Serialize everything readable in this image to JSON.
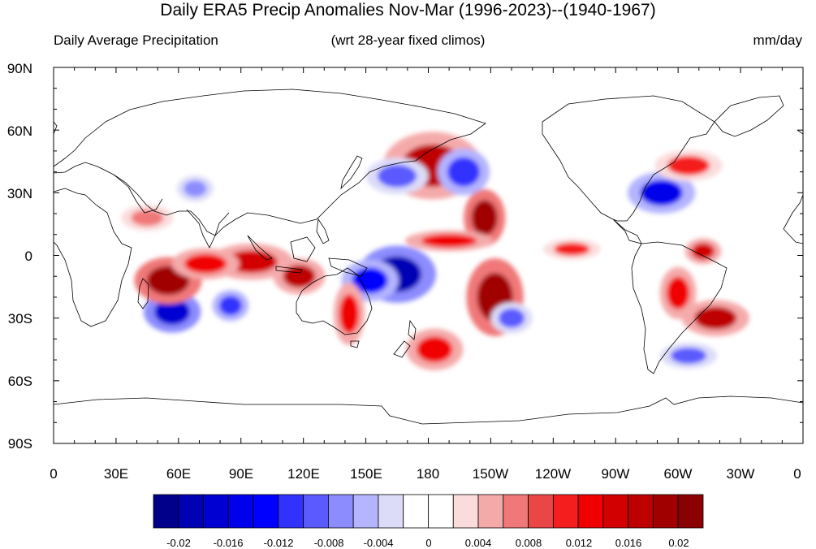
{
  "title": "Daily ERA5 Precip Anomalies Nov-Mar (1996-2023)--(1940-1967)",
  "subtitle_left": "Daily Average Precipitation",
  "subtitle_center": "(wrt 28-year fixed climos)",
  "subtitle_right": "mm/day",
  "y_ticks": [
    "90N",
    "60N",
    "30N",
    "0",
    "30S",
    "60S",
    "90S"
  ],
  "x_ticks": [
    "0",
    "30E",
    "60E",
    "90E",
    "120E",
    "150E",
    "180",
    "150W",
    "120W",
    "90W",
    "60W",
    "30W",
    "0"
  ],
  "colorbar": {
    "colors": [
      "#00008b",
      "#0000b4",
      "#0000d2",
      "#0000eb",
      "#0000ff",
      "#3232ff",
      "#5a5aff",
      "#8c8cff",
      "#b4b4ff",
      "#dcdcf8",
      "#ffffff",
      "#ffffff",
      "#fadcdc",
      "#f5aaaa",
      "#f07878",
      "#eb4646",
      "#f51e1e",
      "#f00000",
      "#d20000",
      "#be0000",
      "#a00000",
      "#8b0000"
    ],
    "labels": [
      "-0.02",
      "-0.016",
      "-0.012",
      "-0.008",
      "-0.004",
      "0",
      "0.004",
      "0.008",
      "0.012",
      "0.016",
      "0.02"
    ]
  },
  "chart_data": {
    "type": "heatmap",
    "title": "Daily ERA5 Precip Anomalies Nov-Mar (1996-2023)--(1940-1967)",
    "units": "mm/day",
    "lon_range": [
      0,
      360
    ],
    "lat_range": [
      -90,
      90
    ],
    "levels": [
      -0.02,
      -0.018,
      -0.016,
      -0.014,
      -0.012,
      -0.01,
      -0.008,
      -0.006,
      -0.004,
      -0.002,
      0,
      0.002,
      0.004,
      0.006,
      0.008,
      0.01,
      0.012,
      0.014,
      0.016,
      0.018,
      0.02
    ],
    "anomaly_features": [
      {
        "lon": 182,
        "lat": 43,
        "value": 0.016
      },
      {
        "lon": 207,
        "lat": 18,
        "value": 0.018
      },
      {
        "lon": 212,
        "lat": -20,
        "value": 0.018
      },
      {
        "lon": 165,
        "lat": -9,
        "value": -0.02
      },
      {
        "lon": 152,
        "lat": -12,
        "value": -0.014
      },
      {
        "lon": 57,
        "lat": -27,
        "value": -0.018
      },
      {
        "lon": 55,
        "lat": -12,
        "value": 0.018
      },
      {
        "lon": 95,
        "lat": -3,
        "value": 0.014
      },
      {
        "lon": 73,
        "lat": -4,
        "value": 0.012
      },
      {
        "lon": 118,
        "lat": -10,
        "value": 0.016
      },
      {
        "lon": 292,
        "lat": 30,
        "value": -0.016
      },
      {
        "lon": 318,
        "lat": -30,
        "value": 0.016
      },
      {
        "lon": 300,
        "lat": -18,
        "value": 0.012
      },
      {
        "lon": 183,
        "lat": -45,
        "value": 0.012
      },
      {
        "lon": 142,
        "lat": -28,
        "value": 0.012
      },
      {
        "lon": 165,
        "lat": 38,
        "value": -0.01
      },
      {
        "lon": 197,
        "lat": 40,
        "value": -0.012
      },
      {
        "lon": 190,
        "lat": 7,
        "value": 0.012
      },
      {
        "lon": 249,
        "lat": 3,
        "value": 0.01
      },
      {
        "lon": 312,
        "lat": 2,
        "value": 0.014
      },
      {
        "lon": 85,
        "lat": -24,
        "value": -0.012
      },
      {
        "lon": 68,
        "lat": 32,
        "value": -0.008
      },
      {
        "lon": 305,
        "lat": 43,
        "value": 0.01
      },
      {
        "lon": 45,
        "lat": 18,
        "value": 0.006
      },
      {
        "lon": 305,
        "lat": -48,
        "value": -0.01
      },
      {
        "lon": 220,
        "lat": -30,
        "value": -0.01
      }
    ]
  }
}
